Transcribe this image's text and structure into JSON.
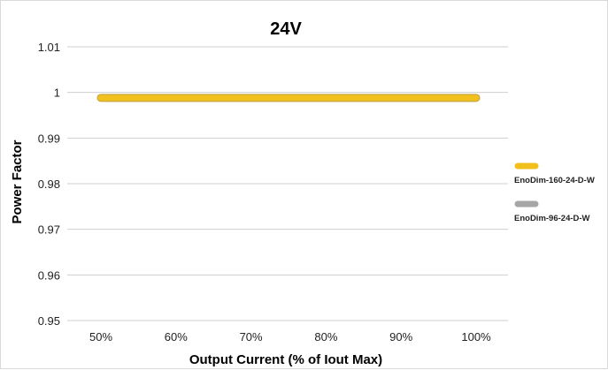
{
  "chart_data": {
    "type": "line",
    "title": "24V",
    "xlabel": "Output Current (% of Iout Max)",
    "ylabel": "Power Factor",
    "x": [
      50,
      60,
      70,
      80,
      90,
      100
    ],
    "x_tick_labels": [
      "50%",
      "60%",
      "70%",
      "80%",
      "90%",
      "100%"
    ],
    "y_ticks": [
      0.95,
      0.96,
      0.97,
      0.98,
      0.99,
      1,
      1.01
    ],
    "y_tick_labels": [
      "0.95",
      "0.96",
      "0.97",
      "0.98",
      "0.99",
      "1",
      "1.01"
    ],
    "ylim": [
      0.95,
      1.01
    ],
    "grid": "horizontal",
    "legend_position": "right",
    "series": [
      {
        "name": "EnoDim-160-24-D-W",
        "color": "#f2c01d",
        "values": [
          0.9988,
          0.9988,
          0.9988,
          0.9988,
          0.9988,
          0.9988
        ]
      },
      {
        "name": "EnoDim-96-24-D-W",
        "color": "#a6a6a6",
        "values": [
          0.9988,
          0.9988,
          0.9988,
          0.9988,
          0.9988,
          0.9988
        ]
      }
    ]
  }
}
